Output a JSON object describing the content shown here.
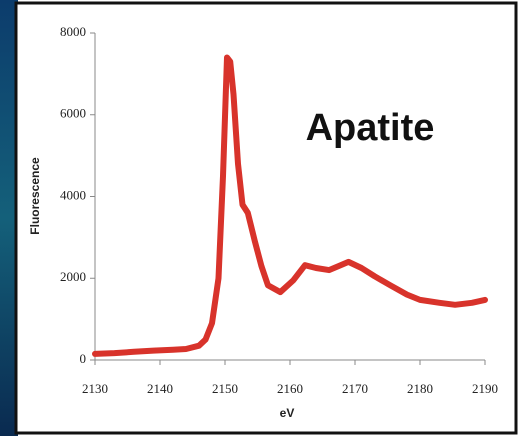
{
  "chart_data": {
    "type": "line",
    "annotation": "Apatite",
    "xlabel": "eV",
    "ylabel": "Fluorescence",
    "color": "#d8332b",
    "x": [
      2130,
      2133,
      2136,
      2139,
      2142,
      2144,
      2146,
      2147,
      2148,
      2149,
      2149.7,
      2150.3,
      2150.8,
      2151.3,
      2152,
      2152.7,
      2153.5,
      2154.6,
      2155.6,
      2156.6,
      2158.5,
      2160.5,
      2162.3,
      2164,
      2166,
      2167.5,
      2169,
      2171,
      2173,
      2175.4,
      2178,
      2180,
      2183,
      2185.4,
      2188,
      2190
    ],
    "values": [
      150,
      170,
      200,
      230,
      250,
      270,
      350,
      500,
      900,
      2000,
      4500,
      7400,
      7300,
      6500,
      4800,
      3800,
      3600,
      2900,
      2300,
      1830,
      1660,
      1950,
      2320,
      2250,
      2200,
      2300,
      2400,
      2250,
      2050,
      1830,
      1600,
      1470,
      1400,
      1350,
      1400,
      1470
    ],
    "xlim": [
      2130,
      2190
    ],
    "xticks": [
      2130,
      2140,
      2150,
      2160,
      2170,
      2180,
      2190
    ],
    "ylim": [
      0,
      8000
    ],
    "yticks": [
      0,
      2000,
      4000,
      6000,
      8000
    ]
  }
}
